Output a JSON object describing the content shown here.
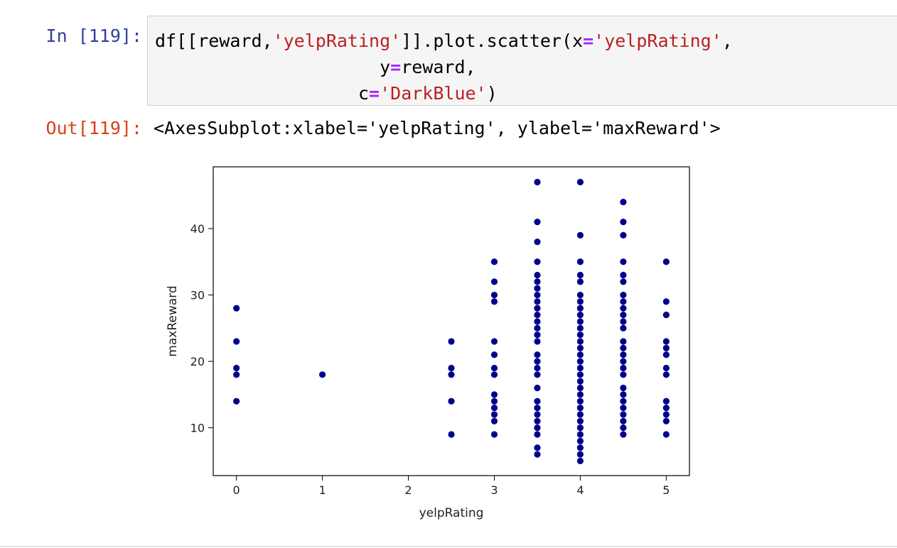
{
  "input_cell": {
    "prompt": "In [119]:",
    "code_lines": [
      [
        {
          "t": "df[[reward,",
          "c": "plain"
        },
        {
          "t": "'yelpRating'",
          "c": "str"
        },
        {
          "t": "]].plot.scatter(x",
          "c": "plain"
        },
        {
          "t": "=",
          "c": "op"
        },
        {
          "t": "'yelpRating'",
          "c": "str"
        },
        {
          "t": ",",
          "c": "plain"
        }
      ],
      [
        {
          "t": "                     y",
          "c": "plain"
        },
        {
          "t": "=",
          "c": "op"
        },
        {
          "t": "reward,",
          "c": "plain"
        }
      ],
      [
        {
          "t": "                   c",
          "c": "plain"
        },
        {
          "t": "=",
          "c": "op"
        },
        {
          "t": "'DarkBlue'",
          "c": "str"
        },
        {
          "t": ")",
          "c": "plain"
        }
      ]
    ]
  },
  "output_cell": {
    "prompt": "Out[119]:",
    "text": "<AxesSubplot:xlabel='yelpRating', ylabel='maxReward'>"
  },
  "chart_data": {
    "type": "scatter",
    "xlabel": "yelpRating",
    "ylabel": "maxReward",
    "color": "#00008b",
    "xlim": [
      -0.27,
      5.27
    ],
    "ylim": [
      2.8,
      49.3
    ],
    "xticks": [
      0,
      1,
      2,
      3,
      4,
      5
    ],
    "yticks": [
      10,
      20,
      30,
      40
    ],
    "grid": false,
    "points": [
      {
        "x": 0,
        "ys": [
          28,
          23,
          19,
          18,
          14
        ]
      },
      {
        "x": 1,
        "ys": [
          18
        ]
      },
      {
        "x": 2.5,
        "ys": [
          23,
          19,
          18,
          14,
          9
        ]
      },
      {
        "x": 3,
        "ys": [
          35,
          32,
          30,
          29,
          23,
          21,
          19,
          18,
          15,
          14,
          13,
          12,
          11,
          9
        ]
      },
      {
        "x": 3.5,
        "ys": [
          47,
          41,
          38,
          35,
          33,
          32,
          31,
          30,
          29,
          28,
          27,
          26,
          25,
          24,
          23,
          21,
          20,
          19,
          18,
          16,
          14,
          13,
          12,
          11,
          10,
          9,
          7,
          6
        ]
      },
      {
        "x": 4,
        "ys": [
          47,
          39,
          35,
          33,
          32,
          30,
          29,
          28,
          27,
          26,
          25,
          24,
          23,
          22,
          21,
          20,
          19,
          18,
          17,
          16,
          15,
          14,
          13,
          12,
          11,
          10,
          9,
          8,
          7,
          6,
          5
        ]
      },
      {
        "x": 4.5,
        "ys": [
          44,
          41,
          39,
          35,
          33,
          32,
          30,
          29,
          28,
          27,
          26,
          25,
          23,
          22,
          21,
          20,
          19,
          18,
          16,
          15,
          14,
          13,
          12,
          11,
          10,
          9
        ]
      },
      {
        "x": 5,
        "ys": [
          35,
          29,
          27,
          23,
          22,
          21,
          19,
          18,
          14,
          13,
          12,
          11,
          9
        ]
      }
    ]
  }
}
